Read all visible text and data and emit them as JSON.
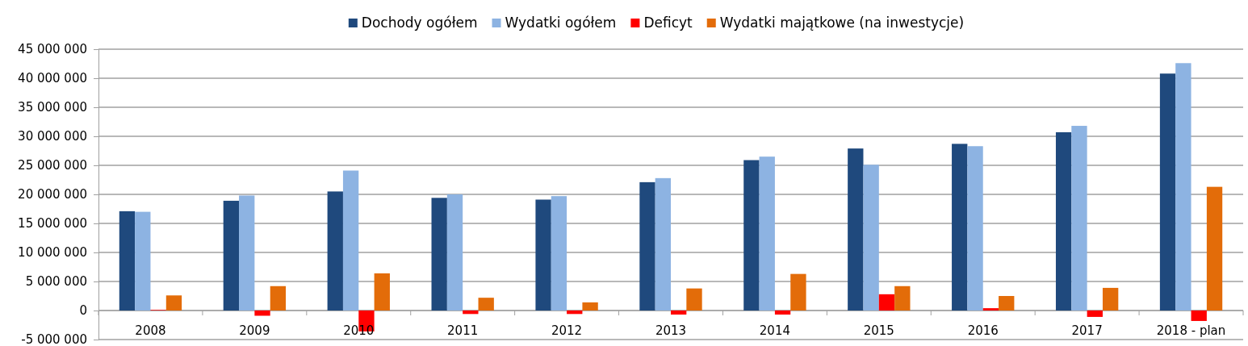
{
  "chart_data": {
    "type": "bar",
    "categories": [
      "2008",
      "2009",
      "2010",
      "2011",
      "2012",
      "2013",
      "2014",
      "2015",
      "2016",
      "2017",
      "2018 - plan"
    ],
    "series": [
      {
        "name": "Dochody ogółem",
        "color": "#1f497d",
        "values": [
          17100000,
          18900000,
          20500000,
          19400000,
          19100000,
          22100000,
          25900000,
          27900000,
          28700000,
          30700000,
          40800000
        ]
      },
      {
        "name": "Wydatki ogółem",
        "color": "#8db3e2",
        "values": [
          17000000,
          19800000,
          24100000,
          20000000,
          19700000,
          22800000,
          26500000,
          25100000,
          28300000,
          31800000,
          42600000
        ]
      },
      {
        "name": "Deficyt",
        "color": "#ff0000",
        "values": [
          100000,
          -900000,
          -3600000,
          -600000,
          -600000,
          -700000,
          -700000,
          2800000,
          400000,
          -1100000,
          -1800000
        ]
      },
      {
        "name": "Wydatki majątkowe (na inwestycje)",
        "color": "#e36c09",
        "values": [
          2600000,
          4200000,
          6400000,
          2200000,
          1400000,
          3800000,
          6300000,
          4200000,
          2500000,
          3900000,
          21300000
        ]
      }
    ],
    "ylim": [
      -5000000,
      45000000
    ],
    "yticks": [
      {
        "value": -5000000,
        "label": "-5 000 000"
      },
      {
        "value": 0,
        "label": "0"
      },
      {
        "value": 5000000,
        "label": "5 000 000"
      },
      {
        "value": 10000000,
        "label": "10 000 000"
      },
      {
        "value": 15000000,
        "label": "15 000 000"
      },
      {
        "value": 20000000,
        "label": "20 000 000"
      },
      {
        "value": 25000000,
        "label": "25 000 000"
      },
      {
        "value": 30000000,
        "label": "30 000 000"
      },
      {
        "value": 35000000,
        "label": "35 000 000"
      },
      {
        "value": 40000000,
        "label": "40 000 000"
      },
      {
        "value": 45000000,
        "label": "45 000 000"
      }
    ],
    "grid": "y",
    "legend": "top"
  }
}
